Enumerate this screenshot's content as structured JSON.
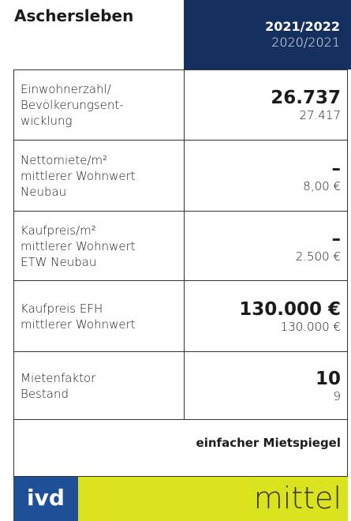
{
  "header": {
    "title": "Aschersleben",
    "current_period": "2021/2022",
    "previous_period": "2020/2021"
  },
  "rows": [
    {
      "label": [
        "Einwohnerzahl/",
        "Bevölkerungsent-",
        "wicklung"
      ],
      "current": "26.737",
      "previous": "27.417"
    },
    {
      "label": [
        "Nettomiete/m²",
        "mittlerer Wohnwert",
        "Neubau"
      ],
      "current": "–",
      "previous": "8,00 €"
    },
    {
      "label": [
        "Kaufpreis/m²",
        "mittlerer Wohnwert",
        "ETW Neubau"
      ],
      "current": "–",
      "previous": "2.500 €"
    },
    {
      "label": [
        "Kaufpreis EFH",
        "mittlerer Wohnwert"
      ],
      "current": "130.000 €",
      "previous": "130.000 €"
    },
    {
      "label": [
        "Mietenfaktor",
        "Bestand"
      ],
      "current": "10",
      "previous": "9"
    }
  ],
  "footer": {
    "note": "einfacher Mietspiegel",
    "logo": "ivd",
    "rating": "mittel"
  }
}
